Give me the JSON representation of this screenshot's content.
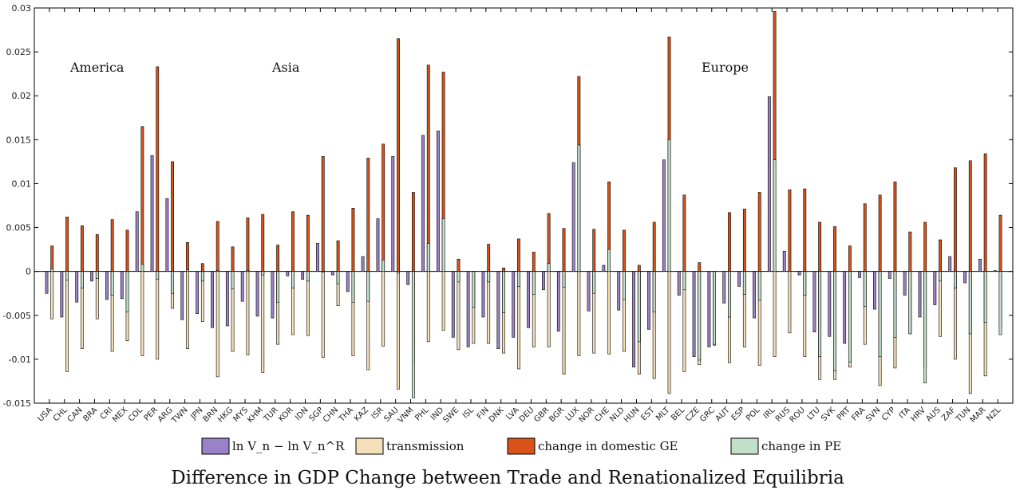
{
  "chart_data": {
    "type": "bar",
    "title": "Difference in GDP Change between Trade and Renationalized Equilibria",
    "xlabel": "",
    "ylabel": "",
    "ylim": [
      -0.015,
      0.03
    ],
    "yticks": [
      -0.015,
      -0.01,
      -0.005,
      0,
      0.005,
      0.01,
      0.015,
      0.02,
      0.025,
      0.03
    ],
    "ytick_labels": [
      "-0.015",
      "-0.01",
      "-0.005",
      "0",
      "0.005",
      "0.01",
      "0.015",
      "0.02",
      "0.025",
      "0.03"
    ],
    "grid": false,
    "legend_position": "bottom",
    "region_labels": [
      "America",
      "Asia",
      "Europe"
    ],
    "categories": [
      "USA",
      "CHL",
      "CAN",
      "BRA",
      "CRI",
      "MEX",
      "COL",
      "PER",
      "ARG",
      "TWN",
      "JPN",
      "BRN",
      "HKG",
      "MYS",
      "KHM",
      "TUR",
      "KOR",
      "IDN",
      "SGP",
      "CHN",
      "THA",
      "KAZ",
      "ISR",
      "SAU",
      "VNM",
      "PHL",
      "IND",
      "SWE",
      "ISL",
      "FIN",
      "DNK",
      "LVA",
      "DEU",
      "GBR",
      "BGR",
      "LUX",
      "NOR",
      "CHE",
      "NLD",
      "HUN",
      "EST",
      "MLT",
      "BEL",
      "CZE",
      "GRC",
      "AUT",
      "ESP",
      "POL",
      "IRL",
      "RUS",
      "ROU",
      "LTU",
      "SVK",
      "PRT",
      "FRA",
      "SVN",
      "CYP",
      "ITA",
      "HRV",
      "AUS",
      "ZAF",
      "TUN",
      "MAR",
      "NZL"
    ],
    "series": [
      {
        "name": "ln V_n − ln V_n^R",
        "legend_label": "ln V_n − ln V_n^R",
        "color": "#9b82c8",
        "values": [
          -0.0025,
          -0.0052,
          -0.0035,
          -0.0011,
          -0.0032,
          -0.0031,
          0.0068,
          0.0132,
          0.0083,
          -0.0055,
          -0.0048,
          -0.0064,
          -0.0062,
          -0.0034,
          -0.0051,
          -0.0053,
          -0.0005,
          -0.0009,
          0.0032,
          -0.0004,
          -0.0023,
          0.0017,
          0.006,
          0.0131,
          -0.0015,
          0.0155,
          0.016,
          -0.0075,
          -0.0086,
          -0.0052,
          -0.0088,
          -0.0075,
          -0.0064,
          -0.0021,
          -0.0068,
          0.0124,
          -0.0045,
          0.0007,
          -0.0044,
          -0.0109,
          -0.0066,
          0.0127,
          -0.0027,
          -0.0097,
          -0.0086,
          -0.0036,
          -0.0017,
          -0.0053,
          0.0199,
          0.0023,
          -0.0004,
          -0.0069,
          -0.0074,
          -0.0082,
          -0.0007,
          -0.0043,
          -0.0008,
          -0.0027,
          -0.0052,
          -0.0038,
          0.0017,
          -0.0013,
          0.0014,
          0.0001
        ]
      },
      {
        "name": "transmission",
        "legend_label": "transmission",
        "color": "#f5dfb8",
        "values": [
          -0.0054,
          -0.0114,
          -0.0088,
          -0.0054,
          -0.0091,
          -0.0079,
          -0.0096,
          -0.01,
          -0.0042,
          -0.0088,
          -0.0057,
          -0.012,
          -0.0091,
          -0.0095,
          -0.0115,
          -0.0083,
          -0.0072,
          -0.0073,
          -0.0098,
          -0.0039,
          -0.0096,
          -0.0112,
          -0.0085,
          -0.0134,
          -0.0104,
          -0.008,
          -0.0067,
          -0.0089,
          -0.0082,
          -0.0082,
          -0.0093,
          -0.0111,
          -0.0086,
          -0.0086,
          -0.0117,
          -0.0096,
          -0.0093,
          -0.0094,
          -0.0091,
          -0.0117,
          -0.0122,
          -0.0139,
          -0.0114,
          -0.0106,
          -0.0084,
          -0.0104,
          -0.0086,
          -0.0107,
          -0.0097,
          -0.007,
          -0.0097,
          -0.0123,
          -0.0123,
          -0.0109,
          -0.0083,
          -0.013,
          -0.011,
          -0.0071,
          -0.0109,
          -0.0074,
          -0.01,
          -0.0139,
          -0.0119,
          -0.0063
        ]
      },
      {
        "name": "change in domestic GE",
        "legend_label": "change in domestic GE",
        "color": "#d95319",
        "values": [
          0.0029,
          0.0062,
          0.0052,
          0.0042,
          0.0059,
          0.0047,
          0.0165,
          0.0233,
          0.0125,
          0.0033,
          0.0009,
          0.0057,
          0.0028,
          0.0061,
          0.0065,
          0.003,
          0.0068,
          0.0064,
          0.0131,
          0.0035,
          0.0072,
          0.0129,
          0.0145,
          0.0265,
          0.009,
          0.0235,
          0.0227,
          0.0014,
          0.0,
          0.0031,
          0.0004,
          0.0037,
          0.0022,
          0.0066,
          0.0049,
          0.0222,
          0.0048,
          0.0102,
          0.0047,
          0.0007,
          0.0056,
          0.0267,
          0.0087,
          0.001,
          0.0,
          0.0067,
          0.0071,
          0.009,
          0.0296,
          0.0093,
          0.0094,
          0.0056,
          0.0051,
          0.0029,
          0.0077,
          0.0087,
          0.0102,
          0.0045,
          0.0056,
          0.0036,
          0.0118,
          0.0126,
          0.0134,
          0.0064
        ]
      },
      {
        "name": "change in PE",
        "legend_label": "change in PE",
        "color": "#c2e0c8",
        "values": [
          0.0003,
          -0.001,
          -0.0019,
          -0.0008,
          -0.0027,
          -0.0046,
          0.0008,
          -0.0009,
          -0.0025,
          0.0002,
          -0.0011,
          0.0001,
          -0.002,
          0.0001,
          -0.0004,
          -0.0035,
          -0.0019,
          -0.0011,
          -0.0001,
          -0.0014,
          -0.0035,
          -0.0034,
          0.0013,
          -0.0002,
          -0.0144,
          0.0032,
          0.006,
          -0.0012,
          -0.0041,
          -0.0012,
          -0.0047,
          -0.0017,
          -0.0026,
          0.0009,
          -0.0018,
          0.0144,
          -0.0025,
          0.0025,
          -0.0032,
          -0.008,
          -0.0046,
          0.015,
          -0.0021,
          -0.0101,
          -0.0083,
          -0.0052,
          -0.0026,
          -0.0033,
          0.0127,
          0.0,
          -0.0027,
          -0.0097,
          -0.0113,
          -0.0103,
          -0.004,
          -0.0097,
          -0.0075,
          -0.0071,
          -0.0127,
          -0.0011,
          -0.0019,
          -0.0071,
          -0.0058,
          -0.0072
        ]
      }
    ]
  }
}
